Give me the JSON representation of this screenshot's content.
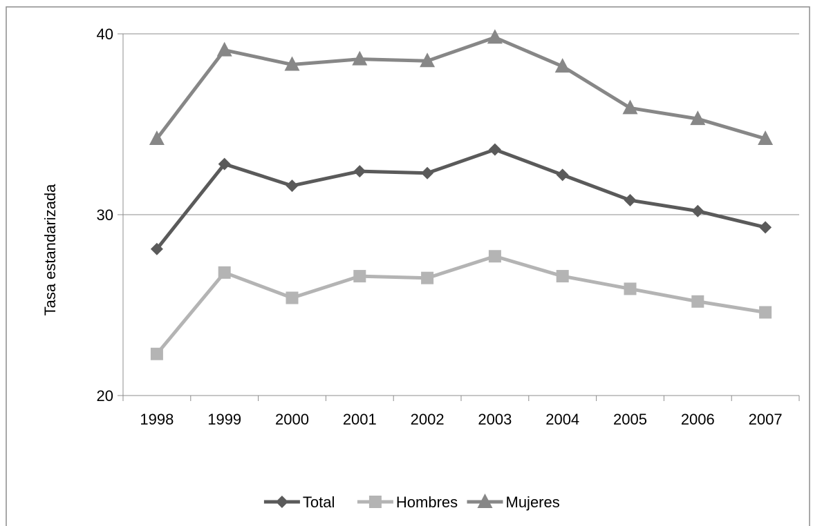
{
  "chart_data": {
    "type": "line",
    "title": "",
    "xlabel": "",
    "ylabel": "Tasa estandarizada",
    "categories": [
      "1998",
      "1999",
      "2000",
      "2001",
      "2002",
      "2003",
      "2004",
      "2005",
      "2006",
      "2007"
    ],
    "ylim": [
      20,
      40
    ],
    "yticks": [
      "20",
      "30",
      "40"
    ],
    "grid": "horizontal major",
    "legend_position": "bottom",
    "series": [
      {
        "name": "Total",
        "marker": "diamond",
        "color": "#5a5a5a",
        "values": [
          28.1,
          32.8,
          31.6,
          32.4,
          32.3,
          33.6,
          32.2,
          30.8,
          30.2,
          29.3
        ]
      },
      {
        "name": "Hombres",
        "marker": "square",
        "color": "#b4b4b4",
        "values": [
          22.3,
          26.8,
          25.4,
          26.6,
          26.5,
          27.7,
          26.6,
          25.9,
          25.2,
          24.6
        ]
      },
      {
        "name": "Mujeres",
        "marker": "triangle",
        "color": "#878787",
        "values": [
          34.2,
          39.1,
          38.3,
          38.6,
          38.5,
          39.8,
          38.2,
          35.9,
          35.3,
          34.2
        ]
      }
    ]
  }
}
